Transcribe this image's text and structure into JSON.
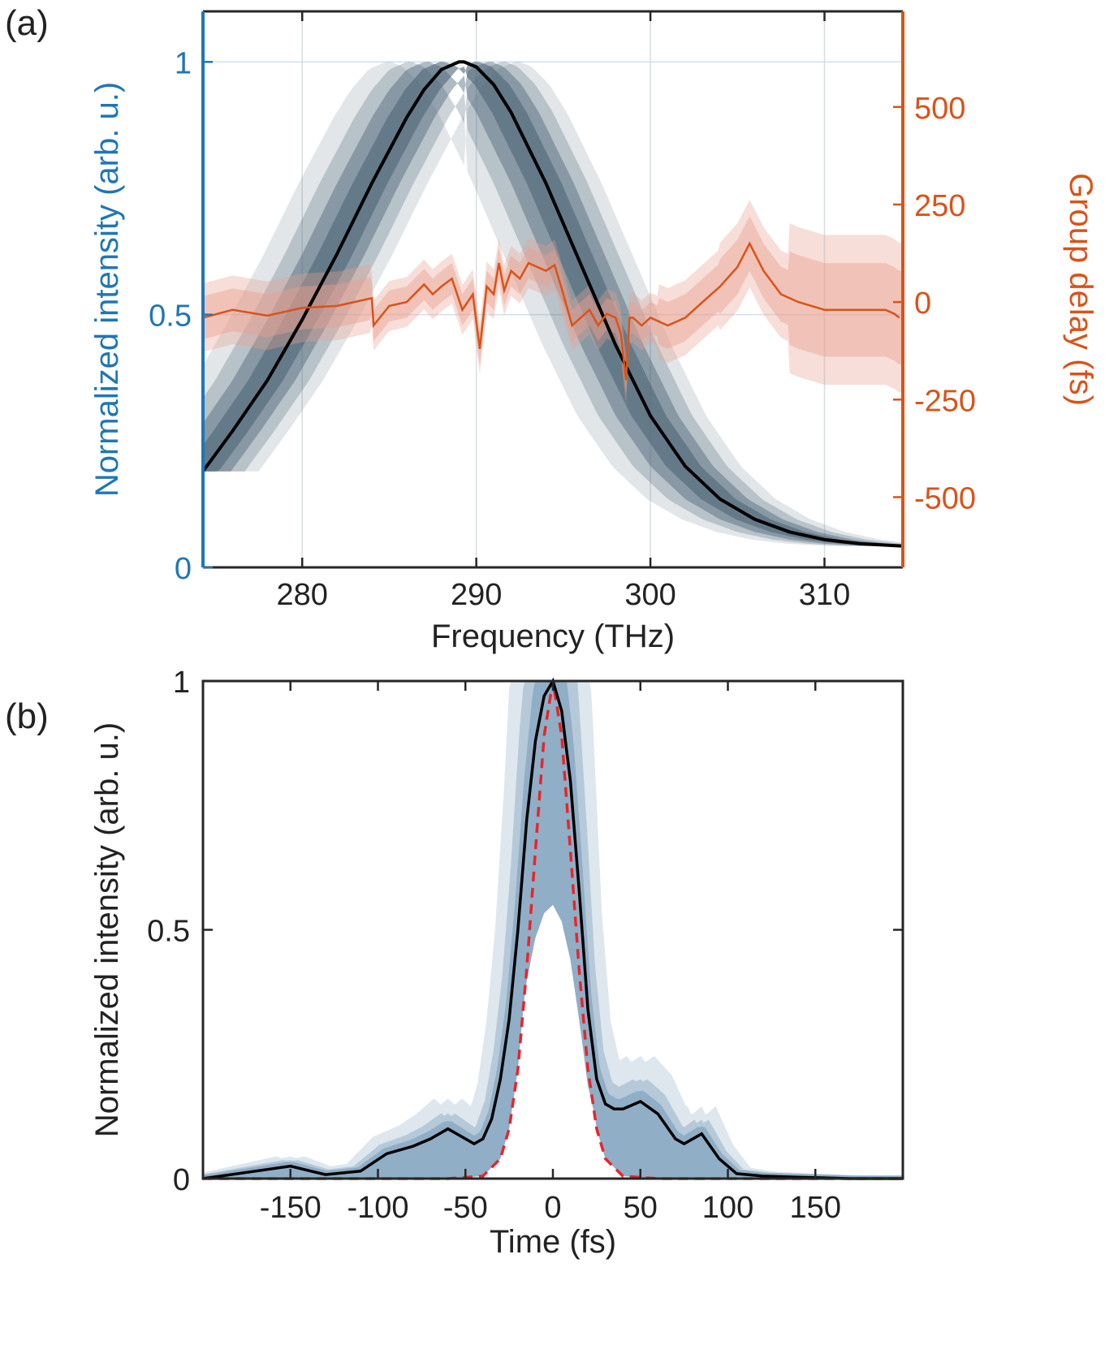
{
  "panel_labels": {
    "a": "(a)",
    "b": "(b)"
  },
  "chart_data": [
    {
      "type": "line",
      "panel": "(a)",
      "xlabel": "Frequency (THz)",
      "ylabel_left": "Normalized intensity (arb. u.)",
      "ylabel_right": "Group delay (fs)",
      "xlim": [
        274.3,
        314.5
      ],
      "ylim_left": [
        0,
        1.1
      ],
      "ylim_right": [
        -680,
        745
      ],
      "xticks": [
        280,
        290,
        300,
        310
      ],
      "xtick_labels": [
        "280",
        "290",
        "300",
        "310"
      ],
      "yticks_left": [
        0,
        0.5,
        1
      ],
      "ytick_labels_left": [
        "0",
        "0.5",
        "1"
      ],
      "yticks_right": [
        -500,
        -250,
        0,
        250,
        500
      ],
      "ytick_labels_right": [
        "-500",
        "-250",
        "0",
        "250",
        "500"
      ],
      "grid": true,
      "colors": {
        "left_axis": "#1f77b4",
        "right_axis": "#d95319",
        "spectrum_band": "#4d6677",
        "spectrum_mean": "#000000",
        "delay_band": "#e8a090",
        "delay_mean": "#d95319"
      },
      "series": [
        {
          "role": "mean spectrum",
          "axis": "left",
          "x": [
            274.3,
            276,
            278,
            280,
            282,
            284,
            286,
            287,
            288,
            289,
            289.3,
            290,
            291,
            292,
            294,
            296,
            298,
            300,
            302,
            304,
            306,
            308,
            310,
            312,
            314.5
          ],
          "y": [
            0.19,
            0.27,
            0.37,
            0.49,
            0.62,
            0.76,
            0.89,
            0.945,
            0.985,
            1.0,
            1.0,
            0.99,
            0.955,
            0.9,
            0.76,
            0.6,
            0.44,
            0.3,
            0.2,
            0.135,
            0.095,
            0.07,
            0.055,
            0.047,
            0.042
          ]
        },
        {
          "role": "mean group delay",
          "axis": "right",
          "x": [
            274.3,
            276,
            278,
            280,
            282,
            284,
            284.1,
            285,
            286,
            287,
            287.5,
            288,
            288.6,
            289.2,
            289.8,
            290.2,
            290.6,
            291,
            291.3,
            291.6,
            292,
            292.5,
            293,
            293.5,
            294,
            294.5,
            295,
            295.5,
            296,
            296.5,
            297,
            297.5,
            298,
            298.3,
            298.6,
            298.8,
            299,
            299.5,
            300,
            301,
            302,
            303,
            304,
            305,
            305.7,
            306.5,
            307.5,
            308.5,
            310,
            312,
            313.5,
            314,
            314.3
          ],
          "y": [
            -40,
            -20,
            -35,
            -15,
            -10,
            10,
            -60,
            -10,
            0,
            45,
            20,
            40,
            60,
            -20,
            20,
            -120,
            40,
            20,
            100,
            30,
            80,
            60,
            100,
            90,
            80,
            95,
            20,
            -60,
            -40,
            -20,
            -60,
            -30,
            -40,
            -80,
            -200,
            -40,
            -40,
            -60,
            -40,
            -60,
            -40,
            0,
            40,
            90,
            150,
            80,
            20,
            0,
            -20,
            -20,
            -20,
            -30,
            -40
          ]
        }
      ]
    },
    {
      "type": "line",
      "panel": "(b)",
      "xlabel": "Time (fs)",
      "ylabel": "Normalized intensity (arb. u.)",
      "xlim": [
        -200,
        200
      ],
      "ylim": [
        0,
        1
      ],
      "xticks": [
        -150,
        -100,
        -50,
        0,
        50,
        100,
        150
      ],
      "xtick_labels": [
        "-150",
        "-100",
        "-50",
        "0",
        "50",
        "100",
        "150"
      ],
      "yticks": [
        0,
        0.5,
        1
      ],
      "ytick_labels": [
        "0",
        "0.5",
        "1"
      ],
      "grid": false,
      "colors": {
        "band": "#6b93b3",
        "mean": "#000000",
        "reference": "#e8252b"
      },
      "series": [
        {
          "role": "mean pulse",
          "style": "solid",
          "x": [
            -200,
            -170,
            -150,
            -130,
            -110,
            -95,
            -80,
            -70,
            -60,
            -50,
            -45,
            -40,
            -35,
            -30,
            -25,
            -20,
            -15,
            -10,
            -5,
            0,
            5,
            10,
            15,
            20,
            25,
            30,
            35,
            40,
            50,
            60,
            70,
            75,
            85,
            95,
            105,
            120,
            140,
            170,
            200
          ],
          "y": [
            0.0,
            0.015,
            0.025,
            0.008,
            0.015,
            0.05,
            0.065,
            0.08,
            0.1,
            0.08,
            0.07,
            0.08,
            0.12,
            0.2,
            0.32,
            0.5,
            0.72,
            0.88,
            0.97,
            1.0,
            0.94,
            0.8,
            0.58,
            0.34,
            0.2,
            0.15,
            0.14,
            0.14,
            0.155,
            0.13,
            0.08,
            0.07,
            0.09,
            0.04,
            0.01,
            0.005,
            0.003,
            0.0,
            0.0
          ]
        },
        {
          "role": "transform-limited pulse",
          "style": "dashed",
          "x": [
            -200,
            -60,
            -40,
            -30,
            -25,
            -20,
            -15,
            -10,
            -5,
            0,
            5,
            10,
            15,
            20,
            25,
            30,
            40,
            60,
            200
          ],
          "y": [
            0.0,
            0.0,
            0.005,
            0.04,
            0.1,
            0.22,
            0.42,
            0.66,
            0.89,
            1.0,
            0.89,
            0.66,
            0.42,
            0.22,
            0.1,
            0.04,
            0.005,
            0.0,
            0.0
          ]
        }
      ]
    }
  ]
}
